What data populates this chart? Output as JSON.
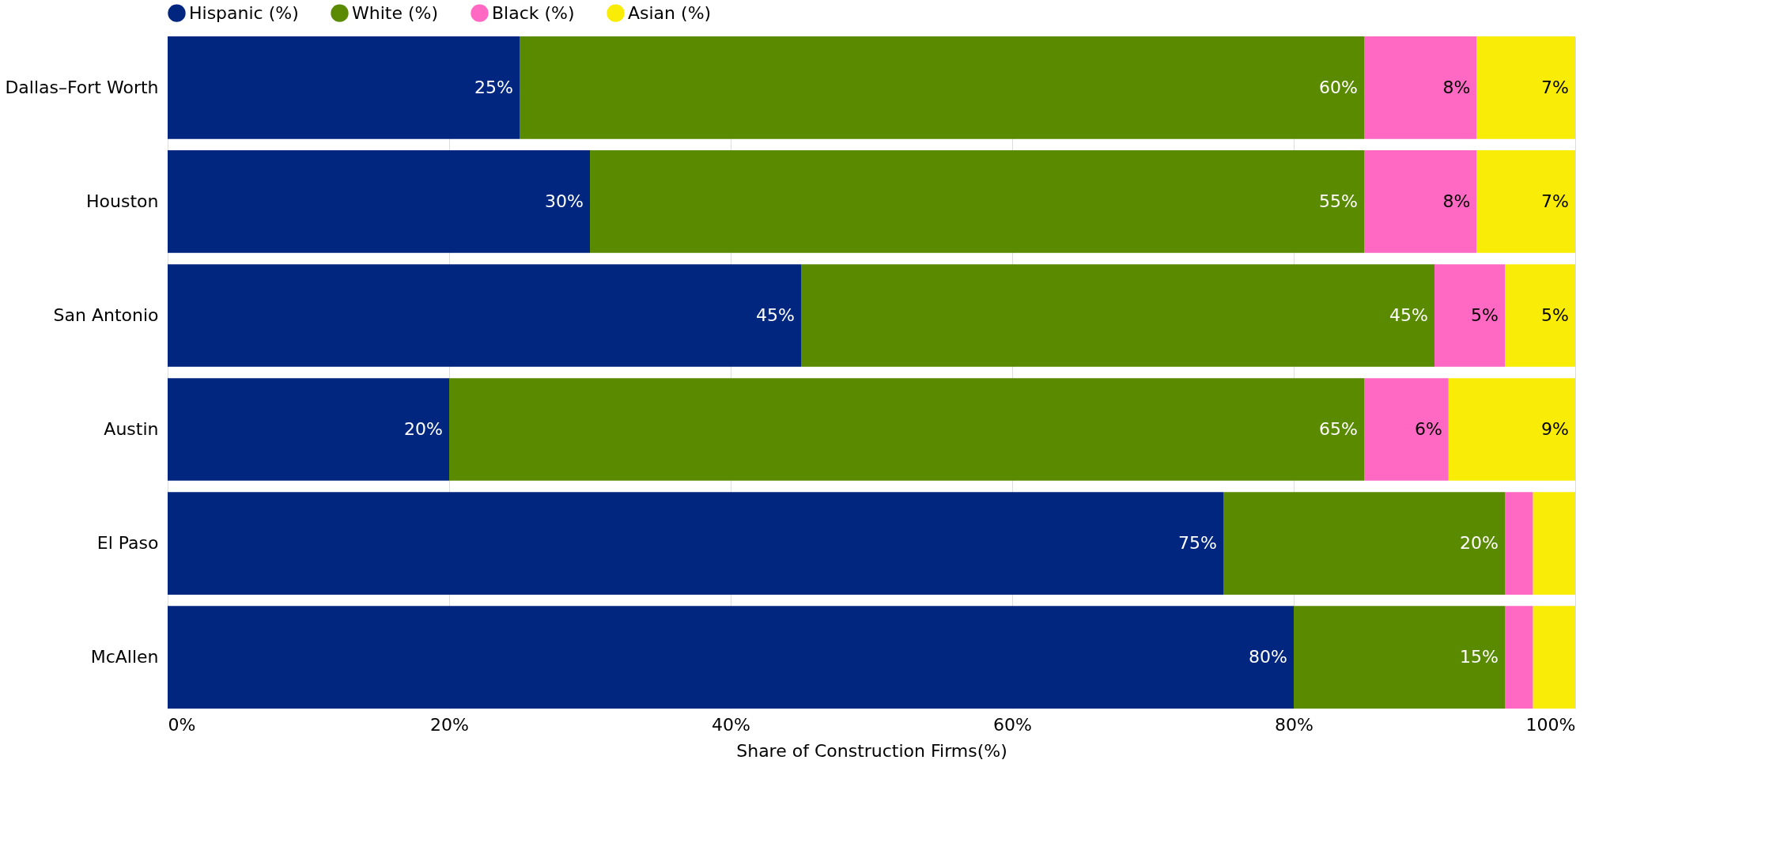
{
  "chart_data": {
    "type": "bar",
    "orientation": "horizontal",
    "stacked": true,
    "xlabel": "Share of Construction Firms(%)",
    "categories": [
      "Dallas–Fort Worth",
      "Houston",
      "San Antonio",
      "Austin",
      "El Paso",
      "McAllen"
    ],
    "series": [
      {
        "name": "Hispanic (%)",
        "color": "#00267f",
        "values": [
          25,
          30,
          45,
          20,
          75,
          80
        ],
        "value_labels": [
          "25%",
          "30%",
          "45%",
          "20%",
          "75%",
          "80%"
        ]
      },
      {
        "name": "White (%)",
        "color": "#5a8a00",
        "values": [
          60,
          55,
          45,
          65,
          20,
          15
        ],
        "value_labels": [
          "60%",
          "55%",
          "45%",
          "65%",
          "20%",
          "15%"
        ]
      },
      {
        "name": "Black (%)",
        "color": "#ff69c4",
        "values": [
          8,
          8,
          5,
          6,
          2,
          2
        ],
        "value_labels": [
          "8%",
          "8%",
          "5%",
          "6%",
          null,
          null
        ]
      },
      {
        "name": "Asian (%)",
        "color": "#f9ec06",
        "values": [
          7,
          7,
          5,
          9,
          3,
          3
        ],
        "value_labels": [
          "7%",
          "7%",
          "5%",
          "9%",
          null,
          null
        ]
      }
    ],
    "xlim": [
      0,
      100
    ],
    "xticks": [
      {
        "value": 0,
        "label": "0%"
      },
      {
        "value": 20,
        "label": "20%"
      },
      {
        "value": 40,
        "label": "40%"
      },
      {
        "value": 60,
        "label": "60%"
      },
      {
        "value": 80,
        "label": "80%"
      },
      {
        "value": 100,
        "label": "100%"
      }
    ],
    "grid": "x",
    "legend": "top"
  }
}
